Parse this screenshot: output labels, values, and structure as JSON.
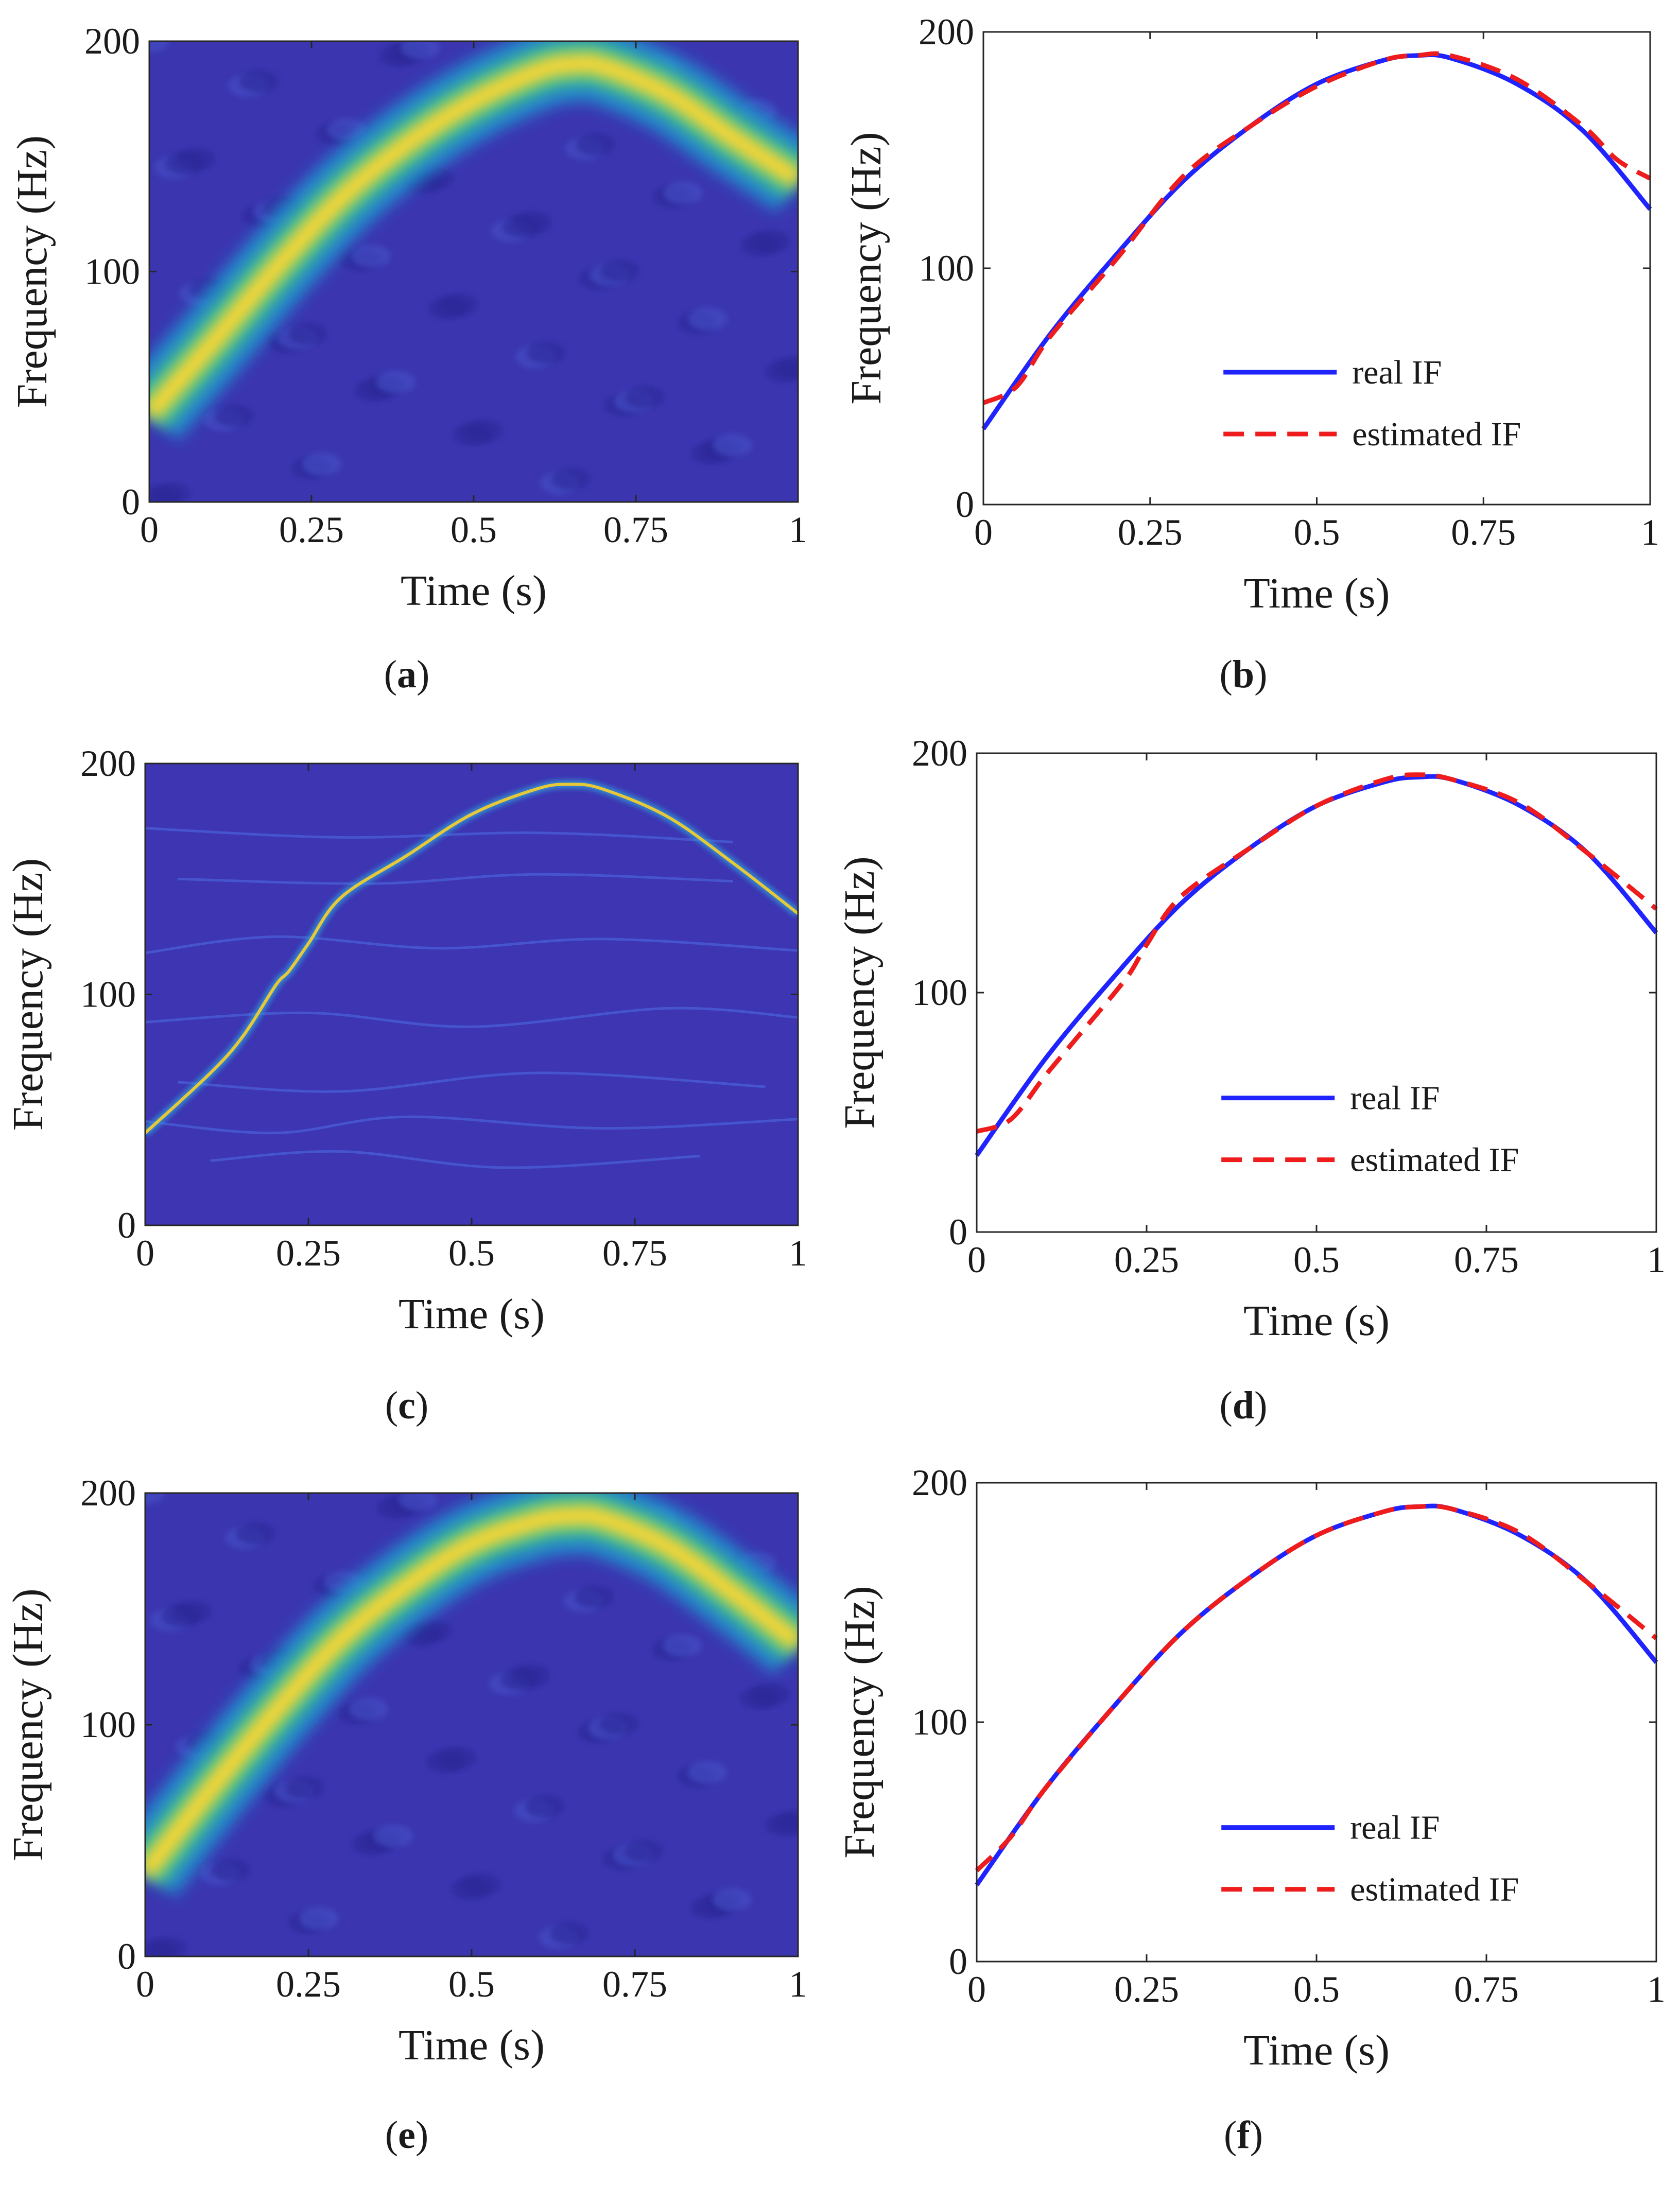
{
  "figure": {
    "panels": [
      {
        "id": "a",
        "kind": "tfr",
        "caption_open": "(",
        "caption_letter": "a",
        "caption_close": ")"
      },
      {
        "id": "b",
        "kind": "if",
        "caption_open": "(",
        "caption_letter": "b",
        "caption_close": ")"
      },
      {
        "id": "c",
        "kind": "tfr",
        "caption_open": "(",
        "caption_letter": "c",
        "caption_close": ")"
      },
      {
        "id": "d",
        "kind": "if",
        "caption_open": "(",
        "caption_letter": "d",
        "caption_close": ")"
      },
      {
        "id": "e",
        "kind": "tfr",
        "caption_open": "(",
        "caption_letter": "e",
        "caption_close": ")"
      },
      {
        "id": "f",
        "kind": "if",
        "caption_open": "(",
        "caption_letter": "f",
        "caption_close": ")"
      }
    ]
  },
  "chart_data": [
    {
      "panel": "a",
      "type": "heatmap",
      "title": "",
      "xlabel": "Time (s)",
      "ylabel": "Frequency (Hz)",
      "xlim": [
        0,
        1
      ],
      "ylim": [
        0,
        200
      ],
      "xticks": [
        0,
        0.25,
        0.5,
        0.75,
        1
      ],
      "xtick_labels": [
        "0",
        "0.25",
        "0.5",
        "0.75",
        "1"
      ],
      "yticks": [
        0,
        100,
        200
      ],
      "ytick_labels": [
        "0",
        "100",
        "200"
      ],
      "ridge": {
        "x": [
          0,
          0.1,
          0.2,
          0.3,
          0.4,
          0.5,
          0.6,
          0.65,
          0.7,
          0.8,
          0.9,
          1.0
        ],
        "y": [
          38,
          70,
          103,
          133,
          156,
          174,
          187,
          190,
          189,
          177,
          158,
          140
        ]
      },
      "colormap": "parula",
      "background_color": "#3b36b0",
      "peak_color": "#fdd633"
    },
    {
      "panel": "b",
      "type": "line",
      "title": "",
      "xlabel": "Time (s)",
      "ylabel": "Frequency (Hz)",
      "xlim": [
        0,
        1
      ],
      "ylim": [
        0,
        200
      ],
      "xticks": [
        0,
        0.25,
        0.5,
        0.75,
        1
      ],
      "xtick_labels": [
        "0",
        "0.25",
        "0.5",
        "0.75",
        "1"
      ],
      "yticks": [
        0,
        100,
        200
      ],
      "ytick_labels": [
        "0",
        "100",
        "200"
      ],
      "legend_position": "lower-right",
      "series": [
        {
          "name": "real IF",
          "style": "solid",
          "color": "#1f24ff",
          "x": [
            0,
            0.1,
            0.2,
            0.3,
            0.4,
            0.5,
            0.6,
            0.65,
            0.7,
            0.8,
            0.9,
            1.0
          ],
          "y": [
            32,
            72,
            106,
            137,
            160,
            178,
            188,
            190,
            189,
            178,
            158,
            125
          ]
        },
        {
          "name": "estimated IF",
          "style": "dashed",
          "color": "#ee1c1c",
          "x": [
            0,
            0.05,
            0.1,
            0.2,
            0.3,
            0.4,
            0.5,
            0.6,
            0.65,
            0.7,
            0.8,
            0.9,
            0.95,
            1.0
          ],
          "y": [
            43,
            50,
            71,
            104,
            139,
            160,
            177,
            188,
            190,
            190,
            180,
            160,
            146,
            138
          ]
        }
      ]
    },
    {
      "panel": "c",
      "type": "heatmap",
      "title": "",
      "xlabel": "Time (s)",
      "ylabel": "Frequency (Hz)",
      "xlim": [
        0,
        1
      ],
      "ylim": [
        0,
        200
      ],
      "xticks": [
        0,
        0.25,
        0.5,
        0.75,
        1
      ],
      "xtick_labels": [
        "0",
        "0.25",
        "0.5",
        "0.75",
        "1"
      ],
      "yticks": [
        0,
        100,
        200
      ],
      "ytick_labels": [
        "0",
        "100",
        "200"
      ],
      "ridge": {
        "x": [
          0,
          0.1,
          0.15,
          0.2,
          0.22,
          0.25,
          0.3,
          0.4,
          0.5,
          0.6,
          0.65,
          0.7,
          0.8,
          0.9,
          1.0
        ],
        "y": [
          40,
          66,
          82,
          104,
          110,
          122,
          142,
          160,
          178,
          189,
          191,
          189,
          177,
          157,
          135
        ]
      },
      "colormap": "parula",
      "background_color": "#3d35b2",
      "peak_color": "#e6c838"
    },
    {
      "panel": "d",
      "type": "line",
      "title": "",
      "xlabel": "Time (s)",
      "ylabel": "Frequency (Hz)",
      "xlim": [
        0,
        1
      ],
      "ylim": [
        0,
        200
      ],
      "xticks": [
        0,
        0.25,
        0.5,
        0.75,
        1
      ],
      "xtick_labels": [
        "0",
        "0.25",
        "0.5",
        "0.75",
        "1"
      ],
      "yticks": [
        0,
        100,
        200
      ],
      "ytick_labels": [
        "0",
        "100",
        "200"
      ],
      "legend_position": "lower-right",
      "series": [
        {
          "name": "real IF",
          "style": "solid",
          "color": "#1f24ff",
          "x": [
            0,
            0.1,
            0.2,
            0.3,
            0.4,
            0.5,
            0.6,
            0.65,
            0.7,
            0.8,
            0.9,
            1.0
          ],
          "y": [
            32,
            72,
            106,
            137,
            160,
            178,
            188,
            190,
            189,
            178,
            158,
            125
          ]
        },
        {
          "name": "estimated IF",
          "style": "dashed",
          "color": "#ee1c1c",
          "x": [
            0,
            0.05,
            0.1,
            0.15,
            0.22,
            0.25,
            0.3,
            0.4,
            0.5,
            0.6,
            0.65,
            0.7,
            0.8,
            0.9,
            1.0
          ],
          "y": [
            42,
            47,
            65,
            82,
            106,
            120,
            140,
            160,
            178,
            189,
            191,
            189,
            179,
            158,
            135
          ]
        }
      ]
    },
    {
      "panel": "e",
      "type": "heatmap",
      "title": "",
      "xlabel": "Time (s)",
      "ylabel": "Frequency (Hz)",
      "xlim": [
        0,
        1
      ],
      "ylim": [
        0,
        200
      ],
      "xticks": [
        0,
        0.25,
        0.5,
        0.75,
        1
      ],
      "xtick_labels": [
        "0",
        "0.25",
        "0.5",
        "0.75",
        "1"
      ],
      "yticks": [
        0,
        100,
        200
      ],
      "ytick_labels": [
        "0",
        "100",
        "200"
      ],
      "ridge": {
        "x": [
          0,
          0.1,
          0.2,
          0.3,
          0.4,
          0.5,
          0.6,
          0.65,
          0.7,
          0.8,
          0.9,
          1.0
        ],
        "y": [
          36,
          72,
          106,
          137,
          160,
          178,
          188,
          190,
          189,
          177,
          157,
          135
        ]
      },
      "colormap": "parula",
      "background_color": "#3b36b0",
      "peak_color": "#fdd633"
    },
    {
      "panel": "f",
      "type": "line",
      "title": "",
      "xlabel": "Time (s)",
      "ylabel": "Frequency (Hz)",
      "xlim": [
        0,
        1
      ],
      "ylim": [
        0,
        200
      ],
      "xticks": [
        0,
        0.25,
        0.5,
        0.75,
        1
      ],
      "xtick_labels": [
        "0",
        "0.25",
        "0.5",
        "0.75",
        "1"
      ],
      "yticks": [
        0,
        100,
        200
      ],
      "ytick_labels": [
        "0",
        "100",
        "200"
      ],
      "legend_position": "lower-right",
      "series": [
        {
          "name": "real IF",
          "style": "solid",
          "color": "#1f24ff",
          "x": [
            0,
            0.1,
            0.2,
            0.3,
            0.4,
            0.5,
            0.6,
            0.65,
            0.7,
            0.8,
            0.9,
            1.0
          ],
          "y": [
            32,
            72,
            106,
            137,
            160,
            178,
            188,
            190,
            189,
            178,
            158,
            125
          ]
        },
        {
          "name": "estimated IF",
          "style": "dashed",
          "color": "#ee1c1c",
          "x": [
            0,
            0.05,
            0.1,
            0.2,
            0.3,
            0.4,
            0.5,
            0.6,
            0.65,
            0.7,
            0.8,
            0.9,
            1.0
          ],
          "y": [
            38,
            52,
            72,
            106,
            137,
            160,
            178,
            188,
            190,
            189,
            179,
            158,
            135
          ]
        }
      ]
    }
  ]
}
